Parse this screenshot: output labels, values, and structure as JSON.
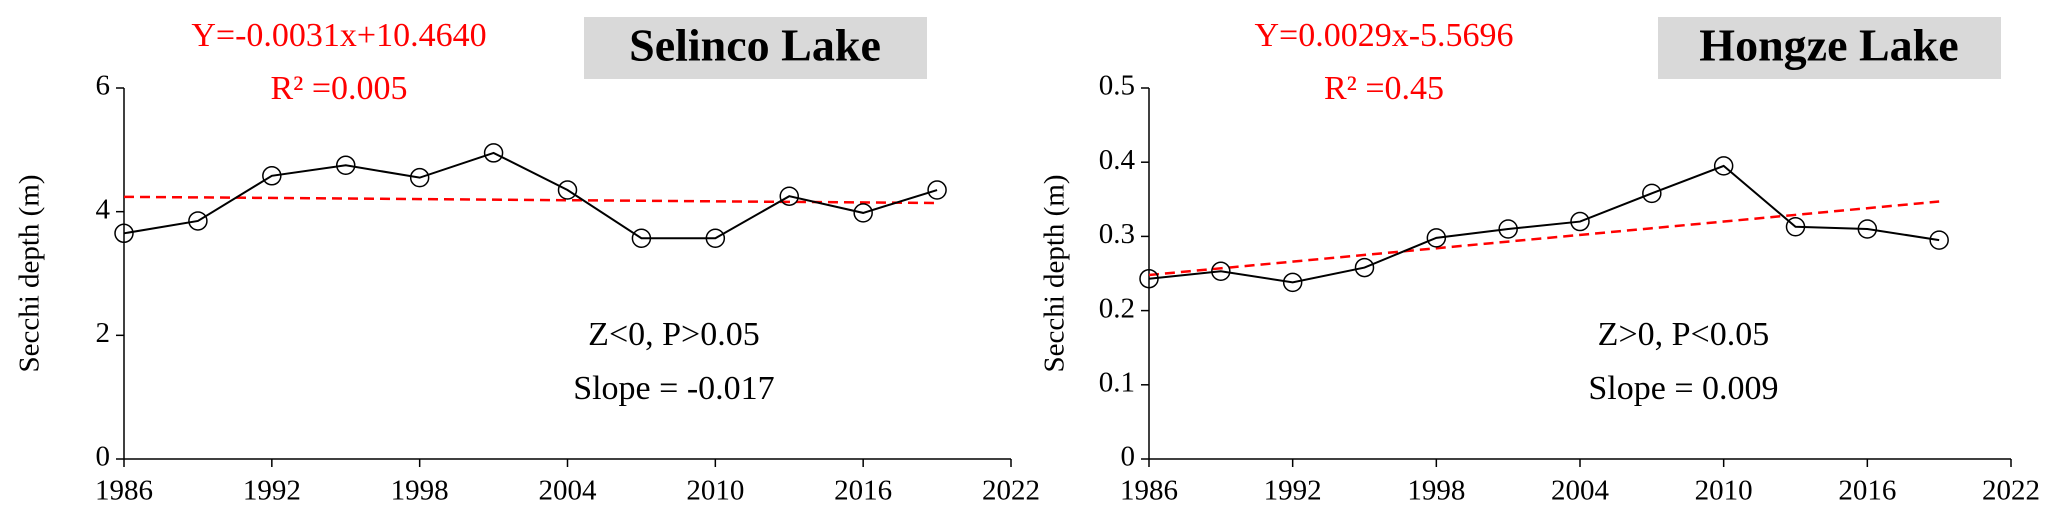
{
  "chart_data": [
    {
      "type": "line",
      "title": "Selinco Lake",
      "equation": "Y=-0.0031x+10.4640",
      "r_squared": "R² =0.005",
      "annotations": [
        "Z<0, P>0.05",
        "Slope = -0.017"
      ],
      "ylabel": "Secchi depth (m)",
      "x": [
        1986,
        1989,
        1992,
        1995,
        1998,
        2001,
        2004,
        2007,
        2010,
        2013,
        2016,
        2019
      ],
      "series": [
        {
          "color": "#000000",
          "values": [
            3.65,
            3.85,
            4.58,
            4.75,
            4.55,
            4.95,
            4.35,
            3.57,
            3.57,
            4.25,
            3.98,
            4.35
          ]
        }
      ],
      "trend": {
        "color": "#ff0000",
        "x": [
          1986,
          2019
        ],
        "values": [
          4.24,
          4.14
        ]
      },
      "xlim": [
        1986,
        2022
      ],
      "xticks": [
        1986,
        1992,
        1998,
        2004,
        2010,
        2016,
        2022
      ],
      "ylim": [
        0,
        6
      ],
      "yticks": [
        0,
        2,
        4,
        6
      ]
    },
    {
      "type": "line",
      "title": "Hongze Lake",
      "equation": "Y=0.0029x-5.5696",
      "r_squared": "R² =0.45",
      "annotations": [
        "Z>0, P<0.05",
        "Slope = 0.009"
      ],
      "ylabel": "Secchi depth (m)",
      "x": [
        1986,
        1989,
        1992,
        1995,
        1998,
        2001,
        2004,
        2007,
        2010,
        2013,
        2016,
        2019
      ],
      "series": [
        {
          "color": "#000000",
          "values": [
            0.243,
            0.253,
            0.238,
            0.258,
            0.298,
            0.31,
            0.32,
            0.358,
            0.395,
            0.313,
            0.31,
            0.295
          ]
        }
      ],
      "trend": {
        "color": "#ff0000",
        "x": [
          1986,
          2019
        ],
        "values": [
          0.248,
          0.347
        ]
      },
      "xlim": [
        1986,
        2022
      ],
      "xticks": [
        1986,
        1992,
        1998,
        2004,
        2010,
        2016,
        2022
      ],
      "ylim": [
        0,
        0.5
      ],
      "yticks": [
        0,
        0.1,
        0.2,
        0.3,
        0.4,
        0.5
      ]
    }
  ]
}
